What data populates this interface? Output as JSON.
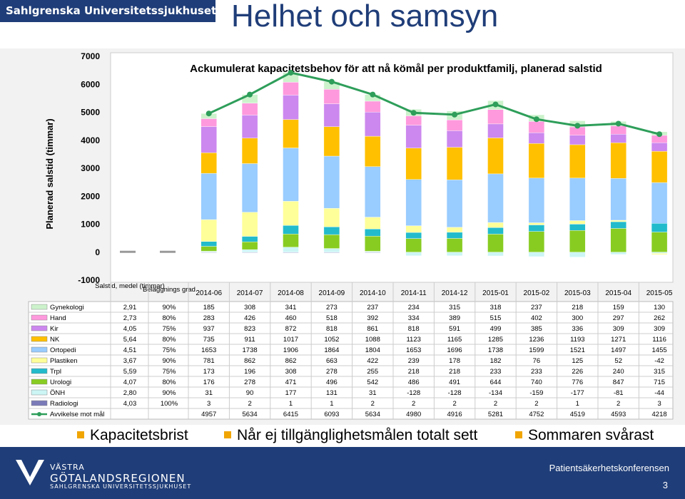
{
  "header": {
    "brand": "Sahlgrenska Universitetssjukhuset",
    "title": "Helhet och samsyn"
  },
  "bullets": [
    "Kapacitetsbrist",
    "Når ej tillgänglighetsmålen totalt sett",
    "Sommaren svårast"
  ],
  "footer": {
    "org_line1": "VÄSTRA",
    "org_line2": "GÖTALANDSREGIONEN",
    "org_line3": "SAHLGRENSKA UNIVERSITETSSJUKHUSET",
    "conference": "Patientsäkerhetskonferensen",
    "page_number": "3"
  },
  "chart_data": {
    "type": "bar",
    "title": "Ackumulerat kapacitetsbehov för att nå kömål per produktfamilj, planerad salstid",
    "ylabel": "Planerad salstid (timmar)",
    "ylim": [
      -1000,
      7000
    ],
    "yticks": [
      "7000",
      "6000",
      "5000",
      "4000",
      "3000",
      "2000",
      "1000",
      "0",
      "-1000"
    ],
    "col_headers": [
      "Salstid, medel (timmar)",
      "Beläggnings grad"
    ],
    "categories": [
      "2014-06",
      "2014-07",
      "2014-08",
      "2014-09",
      "2014-10",
      "2014-11",
      "2014-12",
      "2015-01",
      "2015-02",
      "2015-03",
      "2015-04",
      "2015-05"
    ],
    "series": [
      {
        "name": "Gynekologi",
        "color": "#ccf2cc",
        "salstid": "2,91",
        "belaggning": "90%",
        "values": [
          185,
          308,
          341,
          273,
          237,
          234,
          315,
          318,
          237,
          218,
          159,
          130
        ]
      },
      {
        "name": "Hand",
        "color": "#ff99dd",
        "salstid": "2,73",
        "belaggning": "80%",
        "values": [
          283,
          426,
          460,
          518,
          392,
          334,
          389,
          515,
          402,
          300,
          297,
          262
        ]
      },
      {
        "name": "Kir",
        "color": "#cc88ee",
        "salstid": "4,05",
        "belaggning": "75%",
        "values": [
          937,
          823,
          872,
          818,
          861,
          818,
          591,
          499,
          385,
          336,
          309,
          309
        ]
      },
      {
        "name": "NK",
        "color": "#ffc000",
        "salstid": "5,64",
        "belaggning": "80%",
        "values": [
          735,
          911,
          1017,
          1052,
          1088,
          1123,
          1165,
          1285,
          1236,
          1193,
          1271,
          1116
        ]
      },
      {
        "name": "Ortopedi",
        "color": "#99ccff",
        "salstid": "4,51",
        "belaggning": "75%",
        "values": [
          1653,
          1738,
          1906,
          1864,
          1804,
          1653,
          1696,
          1738,
          1599,
          1521,
          1497,
          1455
        ]
      },
      {
        "name": "Plastiken",
        "color": "#ffff99",
        "salstid": "3,67",
        "belaggning": "90%",
        "values": [
          781,
          862,
          862,
          663,
          422,
          239,
          178,
          182,
          76,
          125,
          52,
          -42
        ]
      },
      {
        "name": "Trpl",
        "color": "#22bbcc",
        "salstid": "5,59",
        "belaggning": "75%",
        "values": [
          173,
          196,
          308,
          278,
          255,
          218,
          218,
          233,
          233,
          226,
          240,
          315
        ]
      },
      {
        "name": "Urologi",
        "color": "#88cc22",
        "salstid": "4,07",
        "belaggning": "80%",
        "values": [
          176,
          278,
          471,
          496,
          542,
          486,
          491,
          644,
          740,
          776,
          847,
          715
        ]
      },
      {
        "name": "ÖNH",
        "color": "#ccf5f5",
        "salstid": "2,80",
        "belaggning": "90%",
        "values": [
          31,
          90,
          177,
          131,
          31,
          -128,
          -128,
          -134,
          -159,
          -177,
          -81,
          -44
        ]
      },
      {
        "name": "Radiologi",
        "color": "#7a7ab8",
        "salstid": "4,03",
        "belaggning": "100%",
        "values": [
          3,
          2,
          1,
          1,
          2,
          2,
          2,
          2,
          2,
          1,
          2,
          3
        ]
      }
    ],
    "line": {
      "name": "Avvikelse mot mål",
      "color": "#2e9e5a",
      "values": [
        4957,
        5634,
        6415,
        6093,
        5634,
        4980,
        4916,
        5281,
        4752,
        4519,
        4593,
        4218
      ]
    }
  }
}
